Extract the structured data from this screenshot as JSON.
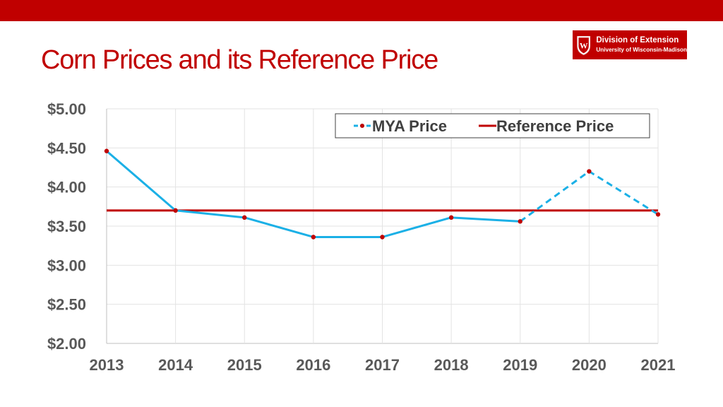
{
  "slide": {
    "title": "Corn Prices and its Reference Price",
    "accent_color": "#c00000",
    "logo": {
      "icon": "uw-crest-icon",
      "line1": "Division of Extension",
      "line2": "University of Wisconsin-Madison"
    }
  },
  "chart_data": {
    "type": "line",
    "title": "",
    "xlabel": "",
    "ylabel": "",
    "x": [
      "2013",
      "2014",
      "2015",
      "2016",
      "2017",
      "2018",
      "2019",
      "2020",
      "2021"
    ],
    "ylim": [
      2.0,
      5.0
    ],
    "y_ticks": [
      {
        "value": 5.0,
        "label": "$5.00"
      },
      {
        "value": 4.5,
        "label": "$4.50"
      },
      {
        "value": 4.0,
        "label": "$4.00"
      },
      {
        "value": 3.5,
        "label": "$3.50"
      },
      {
        "value": 3.0,
        "label": "$3.00"
      },
      {
        "value": 2.5,
        "label": "$2.50"
      },
      {
        "value": 2.0,
        "label": "$2.00"
      }
    ],
    "grid": true,
    "legend_position": "top-right",
    "series": [
      {
        "name": "MYA Price",
        "color": "#1bb0e6",
        "marker_color": "#c00000",
        "values": [
          4.46,
          3.7,
          3.61,
          3.36,
          3.36,
          3.61,
          3.56,
          4.2,
          3.65
        ],
        "dashed_from_index": 7
      },
      {
        "name": "Reference Price",
        "color": "#c00000",
        "values": [
          3.7,
          3.7,
          3.7,
          3.7,
          3.7,
          3.7,
          3.7,
          3.7,
          3.7
        ]
      }
    ]
  }
}
